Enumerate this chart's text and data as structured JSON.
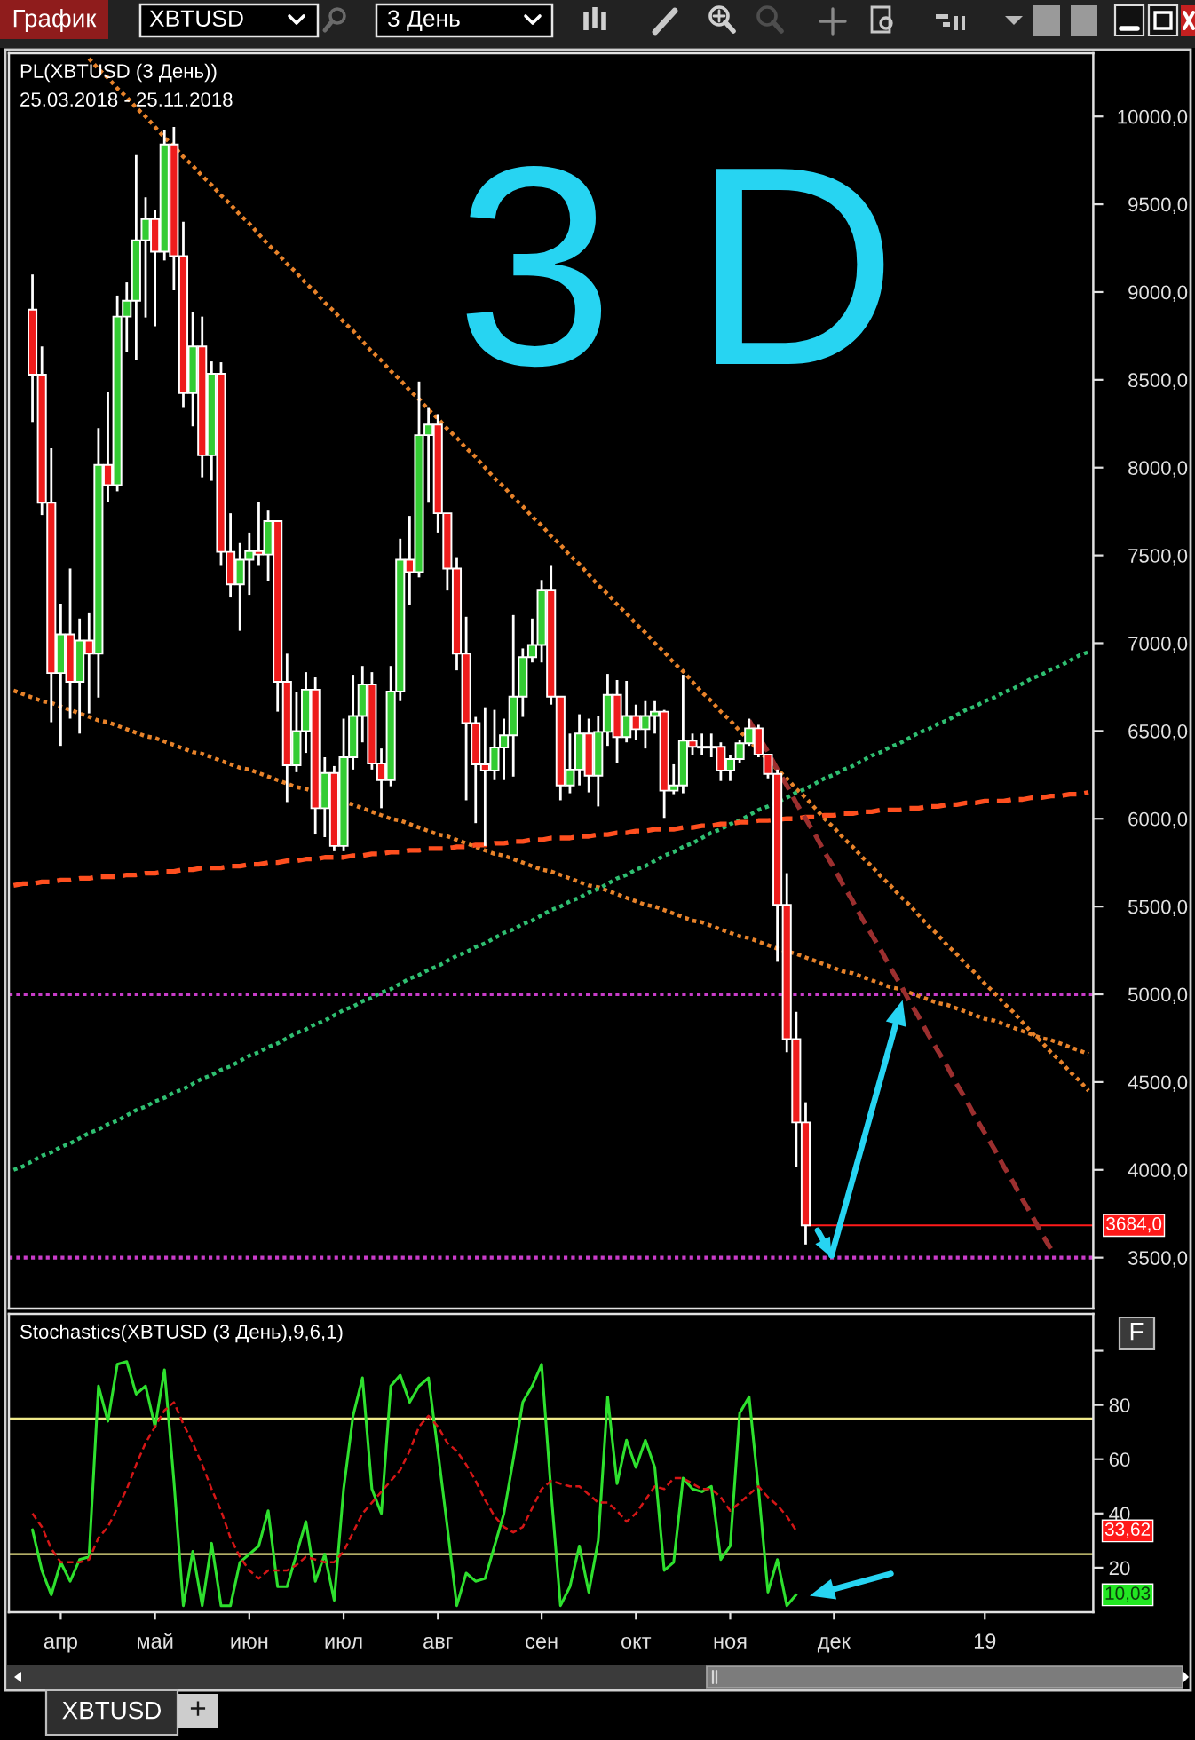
{
  "chart_data": [
    {
      "type": "candlestick",
      "title": "PL(XBTUSD (3 День))",
      "subtitle": "25.03.2018 - 25.11.2018",
      "categories": [
        null,
        null,
        null,
        null,
        null,
        null,
        null,
        null,
        null,
        null,
        null,
        null,
        null,
        null,
        null,
        null,
        null,
        null,
        null,
        null,
        null,
        null,
        null,
        null,
        null,
        null,
        null,
        null,
        null,
        null,
        null,
        null,
        null,
        null,
        null,
        null,
        null,
        null,
        null,
        null,
        null,
        null,
        null,
        null,
        null,
        null,
        null,
        null,
        null,
        null,
        null,
        null,
        null,
        null,
        null,
        null,
        null,
        null,
        null,
        null,
        null,
        null,
        null,
        null,
        null,
        null,
        null,
        null,
        null,
        null,
        null,
        null,
        null,
        null,
        null,
        null,
        null,
        null,
        null,
        null,
        null,
        null,
        null,
        null,
        null,
        null,
        null,
        null,
        null,
        null,
        null,
        null,
        null,
        null,
        null,
        null,
        null,
        null,
        null,
        null,
        null,
        null,
        null,
        null,
        null,
        null,
        null,
        null,
        null,
        null,
        null,
        null,
        null,
        null,
        null
      ],
      "ohlc": [
        null,
        null,
        [
          8900,
          9100,
          8260,
          8530
        ],
        [
          8530,
          8690,
          7730,
          7800
        ],
        [
          7800,
          8110,
          6550,
          6830
        ],
        [
          6830,
          7225,
          6415,
          7050
        ],
        [
          7050,
          7425,
          6570,
          6780
        ],
        [
          6780,
          7140,
          6485,
          7015
        ],
        [
          7015,
          7175,
          6600,
          6940
        ],
        [
          6940,
          8225,
          6690,
          8015
        ],
        [
          8015,
          8430,
          7805,
          7900
        ],
        [
          7900,
          8980,
          7865,
          8860
        ],
        [
          8860,
          9055,
          8660,
          8950
        ],
        [
          8950,
          9780,
          8615,
          9295
        ],
        [
          9295,
          9540,
          8855,
          9415
        ],
        [
          9415,
          9465,
          8805,
          9230
        ],
        [
          9230,
          9920,
          9180,
          9840
        ],
        [
          9840,
          9940,
          9010,
          9205
        ],
        [
          9205,
          9400,
          8340,
          8425
        ],
        [
          8425,
          8885,
          8235,
          8690
        ],
        [
          8690,
          8860,
          7945,
          8070
        ],
        [
          8070,
          8605,
          7925,
          8535
        ],
        [
          8535,
          8600,
          7445,
          7520
        ],
        [
          7520,
          7740,
          7260,
          7335
        ],
        [
          7335,
          7570,
          7070,
          7475
        ],
        [
          7475,
          7630,
          7275,
          7525
        ],
        [
          7525,
          7805,
          7445,
          7505
        ],
        [
          7505,
          7755,
          7355,
          7695
        ],
        [
          7695,
          7700,
          6610,
          6780
        ],
        [
          6780,
          6940,
          6095,
          6305
        ],
        [
          6305,
          6720,
          6265,
          6500
        ],
        [
          6500,
          6835,
          6375,
          6735
        ],
        [
          6735,
          6805,
          5910,
          6060
        ],
        [
          6060,
          6350,
          5895,
          6260
        ],
        [
          6260,
          6300,
          5815,
          5845
        ],
        [
          5845,
          6570,
          5815,
          6350
        ],
        [
          6350,
          6820,
          6280,
          6585
        ],
        [
          6585,
          6870,
          6435,
          6765
        ],
        [
          6765,
          6835,
          6280,
          6315
        ],
        [
          6315,
          6400,
          6060,
          6220
        ],
        [
          6220,
          6870,
          6185,
          6725
        ],
        [
          6725,
          7595,
          6670,
          7475
        ],
        [
          7475,
          7725,
          7220,
          7405
        ],
        [
          7405,
          8490,
          7375,
          8185
        ],
        [
          8185,
          8340,
          7800,
          8245
        ],
        [
          8245,
          8305,
          7630,
          7740
        ],
        [
          7740,
          7740,
          7300,
          7425
        ],
        [
          7425,
          7490,
          6845,
          6940
        ],
        [
          6940,
          7150,
          6105,
          6545
        ],
        [
          6545,
          6580,
          5975,
          6310
        ],
        [
          6310,
          6635,
          5845,
          6275
        ],
        [
          6275,
          6620,
          6220,
          6405
        ],
        [
          6405,
          6570,
          6220,
          6475
        ],
        [
          6475,
          7160,
          6240,
          6695
        ],
        [
          6695,
          6970,
          6580,
          6920
        ],
        [
          6920,
          7140,
          6890,
          6990
        ],
        [
          6990,
          7360,
          6890,
          7300
        ],
        [
          7300,
          7445,
          6650,
          6695
        ],
        [
          6695,
          6695,
          6105,
          6190
        ],
        [
          6190,
          6485,
          6145,
          6280
        ],
        [
          6280,
          6595,
          6190,
          6485
        ],
        [
          6485,
          6570,
          6150,
          6245
        ],
        [
          6245,
          6585,
          6070,
          6495
        ],
        [
          6495,
          6825,
          6415,
          6705
        ],
        [
          6705,
          6790,
          6315,
          6465
        ],
        [
          6465,
          6785,
          6435,
          6585
        ],
        [
          6585,
          6650,
          6450,
          6510
        ],
        [
          6510,
          6670,
          6400,
          6585
        ],
        [
          6585,
          6670,
          6485,
          6610
        ],
        [
          6610,
          6620,
          6005,
          6160
        ],
        [
          6160,
          6310,
          6140,
          6190
        ],
        [
          6190,
          6820,
          6145,
          6445
        ],
        [
          6445,
          6485,
          6365,
          6410
        ],
        [
          6410,
          6485,
          6365,
          6405
        ],
        [
          6405,
          6485,
          6350,
          6410
        ],
        [
          6410,
          6435,
          6215,
          6275
        ],
        [
          6275,
          6365,
          6215,
          6340
        ],
        [
          6340,
          6450,
          6315,
          6430
        ],
        [
          6430,
          6570,
          6415,
          6515
        ],
        [
          6515,
          6535,
          6350,
          6365
        ],
        [
          6365,
          6365,
          6230,
          6255
        ],
        [
          6255,
          6280,
          5185,
          5510
        ],
        [
          5510,
          5690,
          4670,
          4745
        ],
        [
          4745,
          4900,
          4015,
          4270
        ],
        [
          4270,
          4385,
          3575,
          3684
        ],
        null,
        null,
        null,
        null,
        null,
        null,
        null,
        null,
        null,
        null,
        null,
        null,
        null,
        null,
        null,
        null,
        null,
        null,
        null,
        null,
        null,
        null,
        null,
        null,
        null,
        null,
        null,
        null,
        null,
        null
      ],
      "colors": [
        null,
        null,
        "#ee1c1c",
        "#ee1c1c",
        "#ee1c1c",
        "#33cc33",
        "#ee1c1c",
        "#33cc33",
        "#ee1c1c",
        "#33cc33",
        "#ee1c1c",
        "#33cc33",
        "#33cc33",
        "#33cc33",
        "#33cc33",
        "#ee1c1c",
        "#33cc33",
        "#ee1c1c",
        "#ee1c1c",
        "#33cc33",
        "#ee1c1c",
        "#33cc33",
        "#ee1c1c",
        "#ee1c1c",
        "#33cc33",
        "#33cc33",
        "#ee1c1c",
        "#33cc33",
        "#ee1c1c",
        "#ee1c1c",
        "#33cc33",
        "#33cc33",
        "#ee1c1c",
        "#33cc33",
        "#ee1c1c",
        "#33cc33",
        "#33cc33",
        "#33cc33",
        "#ee1c1c",
        "#ee1c1c",
        "#33cc33",
        "#33cc33",
        "#ee1c1c",
        "#33cc33",
        "#33cc33",
        "#ee1c1c",
        "#ee1c1c",
        "#ee1c1c",
        "#ee1c1c",
        "#ee1c1c",
        "#ee1c1c",
        "#33cc33",
        "#33cc33",
        "#33cc33",
        "#33cc33",
        "#33cc33",
        "#33cc33",
        "#ee1c1c",
        "#ee1c1c",
        "#33cc33",
        "#33cc33",
        "#ee1c1c",
        "#33cc33",
        "#33cc33",
        "#ee1c1c",
        "#33cc33",
        "#ee1c1c",
        "#33cc33",
        "#33cc33",
        "#ee1c1c",
        "#33cc33",
        "#33cc33",
        "#ee1c1c",
        "#ee1c1c",
        "#33cc33",
        "#ee1c1c",
        "#33cc33",
        "#33cc33",
        "#33cc33",
        "#ee1c1c",
        "#ee1c1c",
        "#ee1c1c",
        "#ee1c1c",
        "#ee1c1c",
        "#ee1c1c",
        null,
        null,
        null,
        null,
        null,
        null,
        null,
        null,
        null,
        null,
        null,
        null,
        null,
        null,
        null,
        null,
        null,
        null,
        null,
        null,
        null,
        null,
        null,
        null,
        null,
        null,
        null,
        null,
        null,
        null
      ],
      "series": [
        {
          "type": "line",
          "color": "#e8832a",
          "line_style": "dotted",
          "values": [
            null,
            null,
            null,
            null,
            null,
            null,
            null,
            null,
            10330,
            10270,
            10220,
            10160,
            10110,
            10050,
            10000,
            9940,
            9880,
            9830,
            9770,
            9720,
            9660,
            9610,
            9550,
            9500,
            9440,
            9390,
            9330,
            9270,
            9220,
            9160,
            9110,
            9050,
            9000,
            8940,
            8890,
            8830,
            8780,
            8720,
            8660,
            8610,
            8550,
            8500,
            8440,
            8390,
            8330,
            8280,
            8220,
            8170,
            8110,
            8060,
            8000,
            7940,
            7890,
            7830,
            7780,
            7720,
            7670,
            7610,
            7560,
            7500,
            7450,
            7390,
            7330,
            7280,
            7220,
            7170,
            7110,
            7060,
            7000,
            6950,
            6890,
            6840,
            6780,
            6720,
            6670,
            6610,
            6560,
            6500,
            null,
            null,
            null,
            6280,
            6230,
            6170,
            6120,
            6060,
            6000,
            5950,
            5890,
            5840,
            5780,
            5730,
            5670,
            5620,
            5560,
            5510,
            5450,
            5390,
            5340,
            5280,
            5230,
            5170,
            5120,
            5060,
            5010,
            4950,
            4900,
            4840,
            4780,
            4730,
            4670,
            4620,
            4560,
            4510,
            4450
          ]
        },
        {
          "type": "line",
          "color": "#e8832a",
          "line_style": "dotted",
          "values": [
            6730,
            6710,
            6690,
            6670,
            6660,
            6640,
            6620,
            6600,
            6580,
            6560,
            6550,
            6530,
            6510,
            6490,
            6470,
            6460,
            6440,
            6420,
            6400,
            6380,
            6370,
            6350,
            6330,
            6310,
            6290,
            6280,
            6260,
            6240,
            6220,
            6200,
            6180,
            6170,
            null,
            null,
            null,
            null,
            6080,
            6060,
            6040,
            6020,
            6000,
            5990,
            5970,
            5950,
            5930,
            5910,
            5900,
            5880,
            5860,
            5840,
            5820,
            5800,
            5790,
            5770,
            5750,
            5730,
            5710,
            5700,
            5680,
            5660,
            5640,
            5620,
            5610,
            5590,
            5570,
            5550,
            5530,
            5510,
            5500,
            5480,
            5460,
            5440,
            5420,
            5410,
            5390,
            5370,
            5350,
            5330,
            5320,
            5300,
            5280,
            5260,
            null,
            5230,
            5210,
            5190,
            5170,
            5150,
            5130,
            5120,
            5100,
            5080,
            5060,
            5040,
            5030,
            5010,
            4990,
            4970,
            4950,
            4940,
            4920,
            4900,
            4880,
            4860,
            4850,
            4830,
            4810,
            4790,
            4770,
            4750,
            4740,
            4720,
            4700,
            4680,
            4660
          ]
        },
        {
          "type": "line",
          "color": "#2fbf71",
          "line_style": "dotted",
          "values": [
            4000,
            4020,
            4050,
            4080,
            4100,
            4130,
            4150,
            4180,
            4210,
            4230,
            4260,
            4280,
            4310,
            4340,
            4360,
            4390,
            4410,
            4440,
            4460,
            4490,
            4520,
            4540,
            4570,
            4590,
            4620,
            4650,
            4670,
            4700,
            4720,
            4750,
            4780,
            4800,
            4830,
            4850,
            4880,
            4910,
            4930,
            4960,
            4980,
            5010,
            5030,
            5060,
            5090,
            5110,
            5140,
            5160,
            5190,
            5220,
            5240,
            5270,
            5290,
            5320,
            5350,
            5370,
            5400,
            5420,
            5450,
            5480,
            5500,
            5530,
            5550,
            5580,
            5600,
            5630,
            5660,
            5680,
            5710,
            5730,
            5760,
            5790,
            5810,
            5840,
            5860,
            5890,
            5920,
            5940,
            5970,
            5990,
            6020,
            6050,
            6070,
            null,
            6120,
            6150,
            6170,
            6200,
            6230,
            6250,
            6280,
            6300,
            6330,
            6360,
            6380,
            6410,
            6430,
            6460,
            6490,
            6510,
            6540,
            6560,
            6590,
            6620,
            6640,
            6670,
            6690,
            6720,
            6740,
            6770,
            6800,
            6820,
            6850,
            6870,
            6900,
            6930,
            6950
          ]
        },
        {
          "type": "line",
          "color": "#ff4f1f",
          "line_style": "dashed",
          "values": [
            5620,
            5630,
            5630,
            5640,
            5640,
            5650,
            5650,
            5660,
            5660,
            5670,
            5670,
            5670,
            5680,
            5680,
            5690,
            5690,
            5700,
            5700,
            5710,
            5710,
            5720,
            5720,
            5720,
            5730,
            5730,
            5740,
            5740,
            5750,
            5750,
            5760,
            5760,
            5770,
            5770,
            5780,
            5780,
            5780,
            5790,
            5790,
            5800,
            5800,
            5810,
            5810,
            5820,
            5820,
            5830,
            5830,
            5830,
            5840,
            5840,
            5850,
            5850,
            5860,
            5860,
            5870,
            5870,
            5880,
            5880,
            5890,
            5890,
            5890,
            5900,
            5900,
            5910,
            5910,
            5920,
            5920,
            5930,
            5930,
            5940,
            5940,
            5940,
            5950,
            5950,
            5960,
            5960,
            5970,
            5970,
            5980,
            5980,
            5990,
            5990,
            null,
            6000,
            6000,
            6010,
            6010,
            6020,
            6020,
            6030,
            6030,
            6040,
            6040,
            6050,
            6050,
            6050,
            6060,
            6060,
            6070,
            6070,
            6080,
            6080,
            6090,
            6090,
            6100,
            6100,
            6100,
            6110,
            6110,
            6120,
            6120,
            6130,
            6130,
            6140,
            6140,
            6150
          ]
        },
        {
          "type": "line",
          "color": "#9c2f2f",
          "line_style": "dashed",
          "values": [
            null,
            null,
            null,
            null,
            null,
            null,
            null,
            null,
            null,
            null,
            null,
            null,
            null,
            null,
            null,
            null,
            null,
            null,
            null,
            null,
            null,
            null,
            null,
            null,
            null,
            null,
            null,
            null,
            null,
            null,
            null,
            null,
            null,
            null,
            null,
            null,
            null,
            null,
            null,
            null,
            null,
            null,
            null,
            null,
            null,
            null,
            null,
            null,
            null,
            null,
            null,
            null,
            null,
            null,
            null,
            null,
            null,
            null,
            null,
            null,
            null,
            null,
            null,
            null,
            null,
            null,
            null,
            null,
            null,
            null,
            null,
            null,
            null,
            null,
            null,
            null,
            null,
            null,
            6560,
            null,
            6380,
            6280,
            6190,
            6090,
            6000,
            5910,
            5810,
            5720,
            5620,
            5530,
            5430,
            5340,
            5250,
            5150,
            5060,
            4960,
            4870,
            4770,
            4680,
            4590,
            4490,
            4400,
            4300,
            4210,
            4120,
            4020,
            3930,
            3830,
            3740,
            3640,
            3550,
            null,
            null,
            null,
            null
          ]
        }
      ],
      "ref_lines": [
        {
          "axis": "y",
          "value": 5000,
          "color": "#c83cc8",
          "line_style": "dotted"
        },
        {
          "axis": "y",
          "value": 3500,
          "color": "#c83cc8",
          "line_style": "dotted"
        },
        {
          "axis": "y",
          "value": 3684,
          "label": "3684,0",
          "color": "#ff1a1a"
        }
      ],
      "ylim": [
        3210,
        10360
      ],
      "yticks": [
        {
          "value": 3500,
          "label": "3500,0"
        },
        {
          "value": 4000,
          "label": "4000,0"
        },
        {
          "value": 4500,
          "label": "4500,0"
        },
        {
          "value": 5000,
          "label": "5000,0"
        },
        {
          "value": 5500,
          "label": "5500,0"
        },
        {
          "value": 6000,
          "label": "6000,0"
        },
        {
          "value": 6500,
          "label": "6500,0"
        },
        {
          "value": 7000,
          "label": "7000,0"
        },
        {
          "value": 7500,
          "label": "7500,0"
        },
        {
          "value": 8000,
          "label": "8000,0"
        },
        {
          "value": 8500,
          "label": "8500,0"
        },
        {
          "value": 9000,
          "label": "9000,0"
        },
        {
          "value": 9500,
          "label": "9500,0"
        },
        {
          "value": 10000,
          "label": "10000,0"
        }
      ],
      "annotations": [
        "3 D",
        "График",
        "XBTUSD",
        "3 День",
        "XBTUSD",
        "+"
      ]
    },
    {
      "type": "line",
      "title": "Stochastics(XBTUSD (3 День),9,6,1)",
      "categories": [
        null,
        null,
        null,
        null,
        null,
        "апр",
        null,
        null,
        null,
        null,
        null,
        null,
        null,
        null,
        null,
        "май",
        null,
        null,
        null,
        null,
        null,
        null,
        null,
        null,
        null,
        "июн",
        null,
        null,
        null,
        null,
        null,
        null,
        null,
        null,
        null,
        "июл",
        null,
        null,
        null,
        null,
        null,
        null,
        null,
        null,
        null,
        "авг",
        null,
        null,
        null,
        null,
        null,
        null,
        null,
        null,
        null,
        null,
        "сен",
        null,
        null,
        null,
        null,
        null,
        null,
        null,
        null,
        null,
        "окт",
        null,
        null,
        null,
        null,
        null,
        null,
        null,
        null,
        null,
        "ноя",
        null,
        null,
        null,
        null,
        null,
        null,
        null,
        null,
        null,
        null,
        "дек",
        null,
        null,
        null,
        null,
        null,
        null,
        null,
        null,
        null,
        null,
        null,
        null,
        null,
        null,
        null,
        "19",
        null,
        null,
        null,
        null,
        null,
        null,
        null,
        null,
        null,
        null,
        null
      ],
      "series": [
        {
          "color": "#2ee02e",
          "values": [
            null,
            null,
            34,
            19,
            10,
            22,
            15,
            23,
            24,
            87,
            74,
            95,
            96,
            84,
            87,
            72,
            93,
            52,
            6,
            26,
            6,
            29,
            6,
            6,
            22,
            25,
            28,
            41,
            13,
            13,
            25,
            37,
            15,
            25,
            8,
            49,
            76,
            90,
            49,
            40,
            87,
            91,
            81,
            87,
            90,
            63,
            35,
            6,
            18,
            15,
            16,
            28,
            40,
            60,
            81,
            87,
            95,
            48,
            6,
            13,
            28,
            11,
            30,
            83,
            51,
            67,
            57,
            67,
            57,
            19,
            22,
            53,
            49,
            48,
            50,
            23,
            28,
            77,
            83,
            49,
            11,
            23,
            6,
            10.03,
            null,
            null,
            null,
            null,
            null,
            null,
            null,
            null,
            null,
            null,
            null,
            null,
            null,
            null,
            null,
            null,
            null,
            null,
            null,
            null,
            null,
            null,
            null,
            null,
            null,
            null,
            null,
            null,
            null,
            null,
            null
          ]
        },
        {
          "color": "#d41616",
          "line_style": "dashed",
          "values": [
            null,
            null,
            40,
            35,
            27,
            22,
            22,
            22,
            23,
            31,
            35,
            42,
            49,
            58,
            66,
            72,
            78,
            81,
            73,
            66,
            58,
            49,
            41,
            31,
            24,
            19,
            16,
            19,
            19,
            19,
            21,
            24,
            23,
            22,
            22,
            26,
            33,
            40,
            44,
            48,
            52,
            56,
            63,
            72,
            76,
            72,
            66,
            63,
            58,
            52,
            45,
            39,
            35,
            33,
            35,
            42,
            49,
            52,
            51,
            50,
            50,
            47,
            44,
            44,
            41,
            37,
            40,
            45,
            50,
            49,
            53,
            53,
            51,
            49,
            49,
            46,
            41,
            44,
            47,
            50,
            46,
            43,
            39,
            33.62,
            null,
            null,
            null,
            null,
            null,
            null,
            null,
            null,
            null,
            null,
            null,
            null,
            null,
            null,
            null,
            null,
            null,
            null,
            null,
            null,
            null,
            null,
            null,
            null,
            null,
            null,
            null,
            null,
            null,
            null,
            null
          ]
        }
      ],
      "ref_lines": [
        {
          "axis": "y",
          "value": 75,
          "color": "#efe98a"
        },
        {
          "axis": "y",
          "value": 25,
          "color": "#efe98a"
        }
      ],
      "ylim": [
        3.6,
        113.6
      ],
      "yticks": [
        20,
        40,
        60,
        80,
        {
          "value": 100,
          "label": null
        }
      ],
      "annotations": [
        "F",
        "33,62",
        "10,03"
      ]
    }
  ]
}
